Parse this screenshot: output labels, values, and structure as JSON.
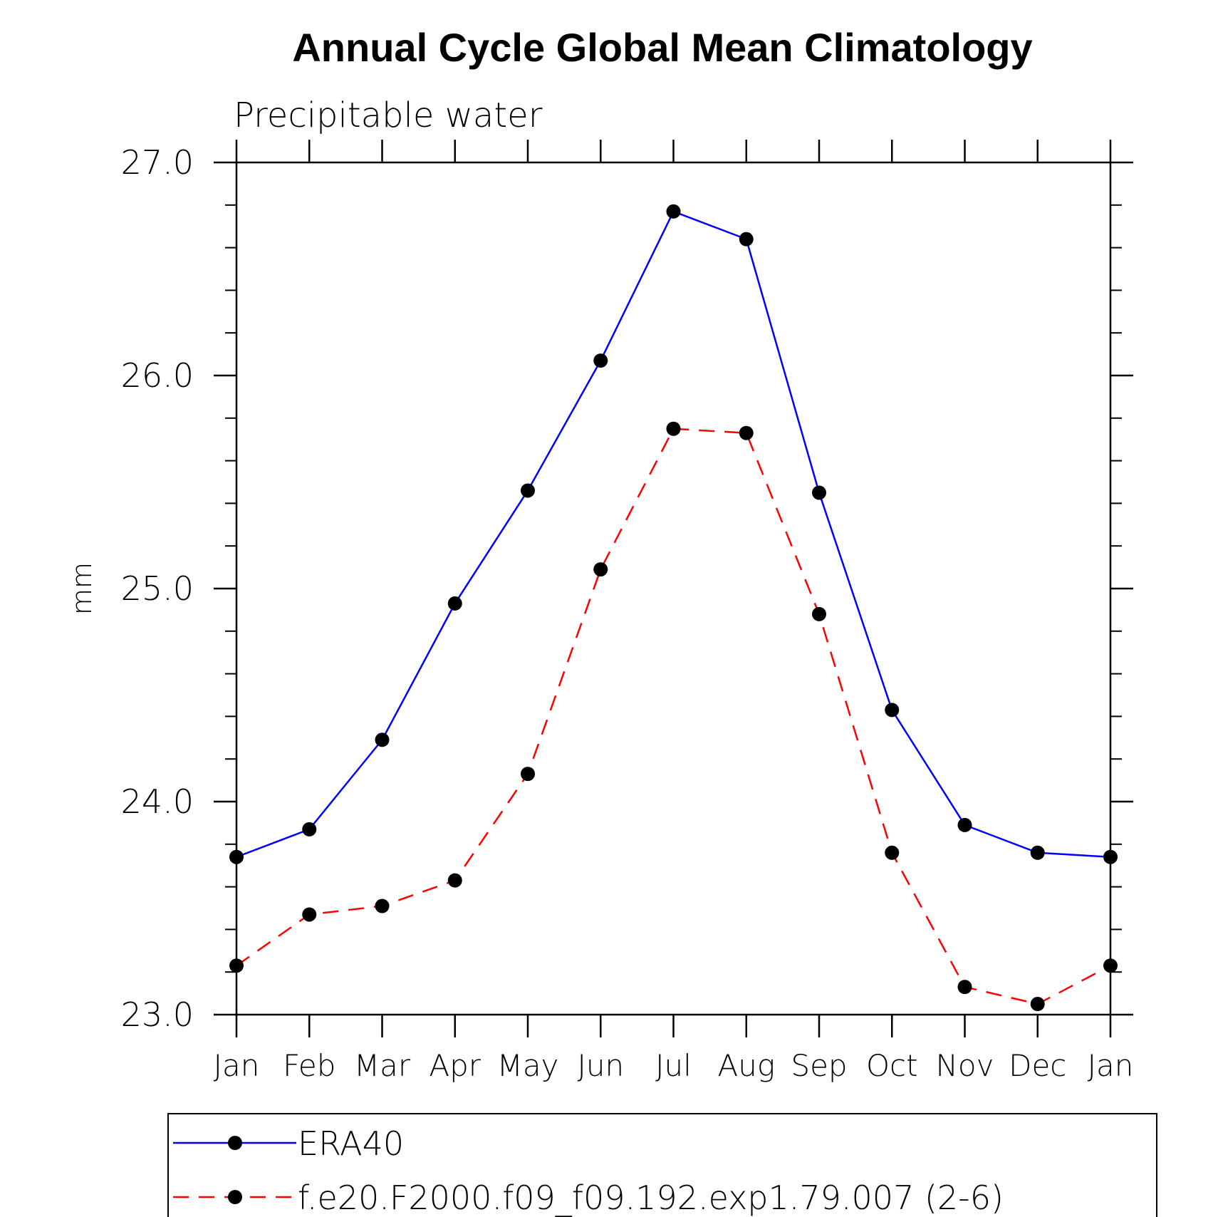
{
  "chart_data": {
    "type": "line",
    "title": "Annual Cycle Global Mean Climatology",
    "subtitle": "Precipitable water",
    "xlabel": "",
    "ylabel": "mm",
    "categories": [
      "Jan",
      "Feb",
      "Mar",
      "Apr",
      "May",
      "Jun",
      "Jul",
      "Aug",
      "Sep",
      "Oct",
      "Nov",
      "Dec",
      "Jan"
    ],
    "ylim": [
      23.0,
      27.0
    ],
    "yticks": [
      "23.0",
      "24.0",
      "25.0",
      "26.0",
      "27.0"
    ],
    "grid": false,
    "legend_position": "bottom",
    "series": [
      {
        "name": "ERA40",
        "color": "#0000ff",
        "line_style": "solid",
        "marker_color": "#000000",
        "values": [
          23.74,
          23.87,
          24.29,
          24.93,
          25.46,
          26.07,
          26.77,
          26.64,
          25.45,
          24.43,
          23.89,
          23.76,
          23.74
        ]
      },
      {
        "name": "f.e20.F2000.f09_f09.192.exp1.79.007 (2-6)",
        "color": "#ff0000",
        "line_style": "dashed",
        "marker_color": "#000000",
        "values": [
          23.23,
          23.47,
          23.51,
          23.63,
          24.13,
          25.09,
          25.75,
          25.73,
          24.88,
          23.76,
          23.13,
          23.05,
          23.23
        ]
      }
    ]
  }
}
